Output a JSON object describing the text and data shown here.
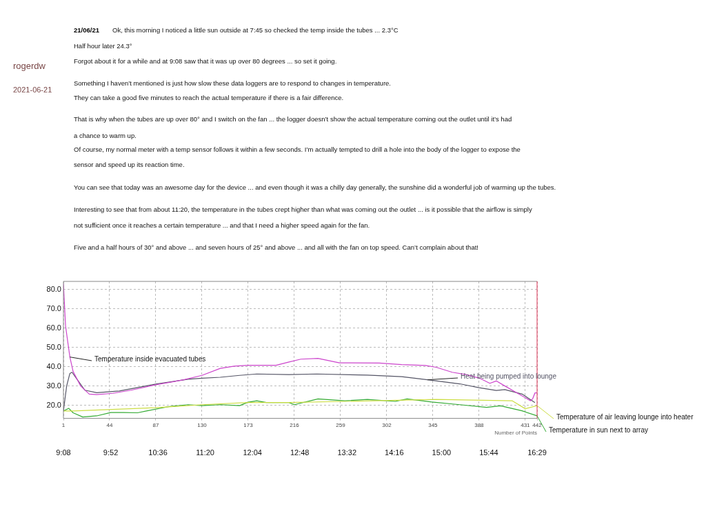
{
  "chart_data": {
    "type": "line",
    "xlabel": "Number of Points",
    "annotations": [
      "rogerdw",
      "2021-06-21",
      "21/06/21",
      "Ok, this morning I noticed a little sun outside at 7:45 so checked the temp inside the tubes  ...  2.3°C",
      "Half hour later 24.3°",
      "Forgot about it for a while and at 9:08 saw that it was up over 80 degrees  ...  so set it going.",
      "Something I haven’t mentioned is just how slow these data loggers are to respond to changes in temperature.",
      "They can take a good five minutes to reach the actual temperature if there is a fair difference.",
      "That is why when the tubes are up over 80° and I switch on the fan  ...  the logger doesn’t show the actual temperature coming out the outlet until it’s had",
      "a chance to warm up.",
      "Of course, my normal meter with a temp sensor follows it within a few seconds. I’m actually tempted to drill a hole into the body of the logger to expose the",
      "sensor and speed up its reaction time.",
      "You can see that today was an awesome day for the device  ...  and even though it was a chilly day generally, the sunshine did a wonderful job of warming up the tubes.",
      "Interesting to see that from about 11:20, the temperature in the tubes crept higher than what was coming out the outlet  ...  is it possible that the airflow is simply",
      "not sufficient once it reaches a certain temperature  ...  and that I need a higher speed again for the fan.",
      "Five and a half hours of 30° and above  ...  and  seven hours of 25° and above  ...  and all with the fan on top speed. Can’t complain about that!"
    ],
    "xlim": [
      1,
      442
    ],
    "xticks": [
      1,
      44,
      87,
      130,
      173,
      216,
      259,
      302,
      345,
      388,
      431,
      442
    ],
    "x2lim": [
      9.1333,
      16.4833
    ],
    "x2ticks": [
      {
        "value": 9.1333,
        "label": "9:08"
      },
      {
        "value": 9.8667,
        "label": "9:52"
      },
      {
        "value": 10.6,
        "label": "10:36"
      },
      {
        "value": 11.3333,
        "label": "11:20"
      },
      {
        "value": 12.0667,
        "label": "12:04"
      },
      {
        "value": 12.8,
        "label": "12:48"
      },
      {
        "value": 13.5333,
        "label": "13:32"
      },
      {
        "value": 14.2667,
        "label": "14:16"
      },
      {
        "value": 15,
        "label": "15:00"
      },
      {
        "value": 15.7333,
        "label": "15:44"
      },
      {
        "value": 16.4833,
        "label": "16:29"
      }
    ],
    "ylim": [
      13.2,
      84.2
    ],
    "yticks": [
      {
        "value": 20,
        "label": "20.0"
      },
      {
        "value": 30,
        "label": "30.0"
      },
      {
        "value": 40,
        "label": "40.0"
      },
      {
        "value": 50,
        "label": "50.0"
      },
      {
        "value": 60,
        "label": "60.0"
      },
      {
        "value": 70,
        "label": "70.0"
      },
      {
        "value": 80,
        "label": "80.0"
      }
    ],
    "grid": true,
    "legend": "right",
    "marker": "none",
    "line_style": "solid",
    "series": [
      {
        "name": "Temperature inside evacuated tubes",
        "color": "#cc44cc",
        "x": [
          1,
          3,
          7,
          10,
          17,
          25,
          32,
          47,
          64,
          87,
          113,
          130,
          147,
          160,
          173,
          199,
          211,
          222,
          238,
          258,
          295,
          316,
          338,
          348,
          363,
          376,
          389,
          398,
          404,
          412,
          425,
          436,
          438,
          440,
          442
        ],
        "values": [
          83,
          61,
          45,
          37.5,
          30,
          25.8,
          25.5,
          26.2,
          27.8,
          30.6,
          33.2,
          35.5,
          39.1,
          40.3,
          40.7,
          40.7,
          42.4,
          43.9,
          44.3,
          42,
          41.9,
          41.1,
          40.6,
          39.7,
          37.1,
          35.9,
          33.9,
          31.4,
          32.6,
          30,
          25.8,
          22.3,
          23.5,
          26.4,
          26.4
        ]
      },
      {
        "name": "Heat being pumped into lounge",
        "color": "#555566",
        "x": [
          1,
          4,
          7,
          9,
          14,
          21,
          32,
          53,
          87,
          117,
          130,
          147,
          165,
          181,
          211,
          237,
          284,
          316,
          340,
          370,
          388,
          404,
          412,
          428,
          440
        ],
        "values": [
          17,
          30,
          36.5,
          37.1,
          33.2,
          27.8,
          26.5,
          27.4,
          31,
          33.5,
          34,
          34.5,
          35.5,
          36.2,
          35.9,
          36.2,
          35.6,
          34.8,
          33.2,
          31.1,
          29.1,
          27.7,
          28.1,
          25.8,
          21.4
        ]
      },
      {
        "name": "Temperature of air leaving lounge into heater",
        "color": "#ccdd44",
        "x": [
          1,
          10,
          87,
          130,
          173,
          211,
          348,
          419,
          431,
          442
        ],
        "values": [
          17,
          17,
          18.7,
          20.3,
          21.4,
          21.4,
          23,
          22.3,
          18.2,
          19.8
        ]
      },
      {
        "name": "Temperature in sun next to array",
        "color": "#33aa33",
        "x": [
          1,
          6,
          10,
          19,
          32,
          45,
          57,
          70,
          79,
          100,
          117,
          130,
          147,
          165,
          173,
          181,
          190,
          211,
          216,
          238,
          263,
          284,
          310,
          321,
          344,
          370,
          395,
          408,
          428,
          442
        ],
        "values": [
          17,
          18.4,
          16.1,
          13.9,
          14.5,
          16.2,
          16.2,
          16.1,
          17.1,
          19.4,
          20.3,
          19.8,
          20.3,
          19.8,
          21.6,
          22.3,
          21.4,
          21.4,
          20.3,
          23.3,
          22.3,
          23,
          22,
          23.3,
          21.7,
          20.3,
          18.9,
          19.7,
          17.1,
          14.5
        ]
      }
    ]
  }
}
